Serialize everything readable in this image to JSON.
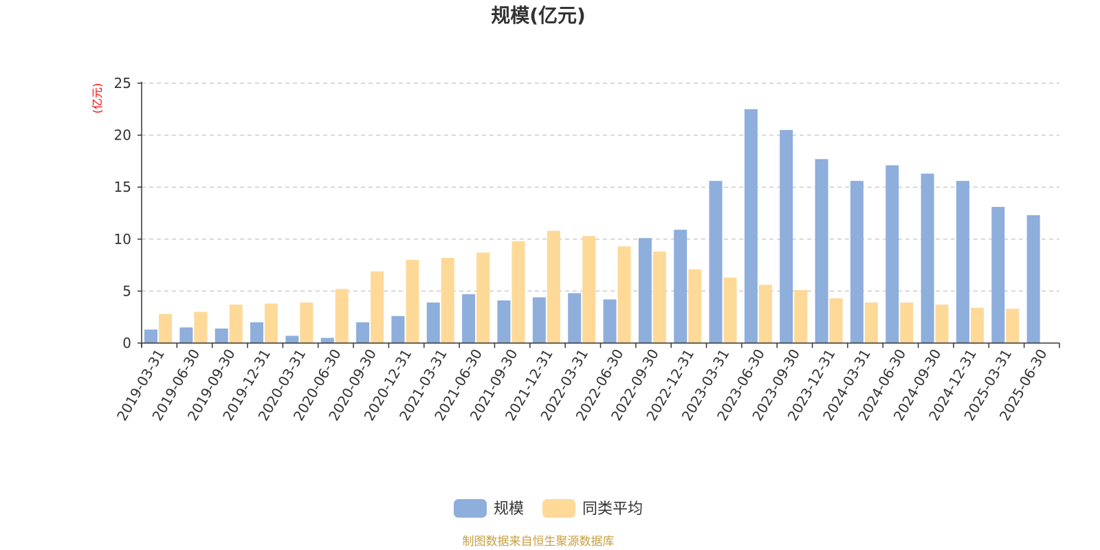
{
  "colors": {
    "series_1": "#8eaedc",
    "series_2": "#fed998",
    "axis": "#333333",
    "grid": "#cccccc",
    "unit_label": "#ff0000",
    "source": "#c8a040"
  },
  "chart_data": {
    "type": "bar",
    "title": "规模(亿元)",
    "ylabel": "(亿元)",
    "xlabel": "",
    "ylim": [
      0,
      25
    ],
    "yticks": [
      0,
      5,
      10,
      15,
      20,
      25
    ],
    "grid": true,
    "legend_position": "bottom-center",
    "categories": [
      "2019-03-31",
      "2019-06-30",
      "2019-09-30",
      "2019-12-31",
      "2020-03-31",
      "2020-06-30",
      "2020-09-30",
      "2020-12-31",
      "2021-03-31",
      "2021-06-30",
      "2021-09-30",
      "2021-12-31",
      "2022-03-31",
      "2022-06-30",
      "2022-09-30",
      "2022-12-31",
      "2023-03-31",
      "2023-06-30",
      "2023-09-30",
      "2023-12-31",
      "2024-03-31",
      "2024-06-30",
      "2024-09-30",
      "2024-12-31",
      "2025-03-31",
      "2025-06-30"
    ],
    "series": [
      {
        "name": "规模",
        "values": [
          1.3,
          1.5,
          1.4,
          2.0,
          0.7,
          0.5,
          2.0,
          2.6,
          3.9,
          4.7,
          4.1,
          4.4,
          4.8,
          4.2,
          10.1,
          10.9,
          15.6,
          22.5,
          20.5,
          17.7,
          15.6,
          17.1,
          16.3,
          15.6,
          13.1,
          12.3
        ]
      },
      {
        "name": "同类平均",
        "values": [
          2.8,
          3.0,
          3.7,
          3.8,
          3.9,
          5.2,
          6.9,
          8.0,
          8.2,
          8.7,
          9.8,
          10.8,
          10.3,
          9.3,
          8.8,
          7.1,
          6.3,
          5.6,
          5.1,
          4.3,
          3.9,
          3.9,
          3.7,
          3.4,
          3.3,
          null
        ]
      }
    ]
  },
  "source_note": "制图数据来自恒生聚源数据库"
}
